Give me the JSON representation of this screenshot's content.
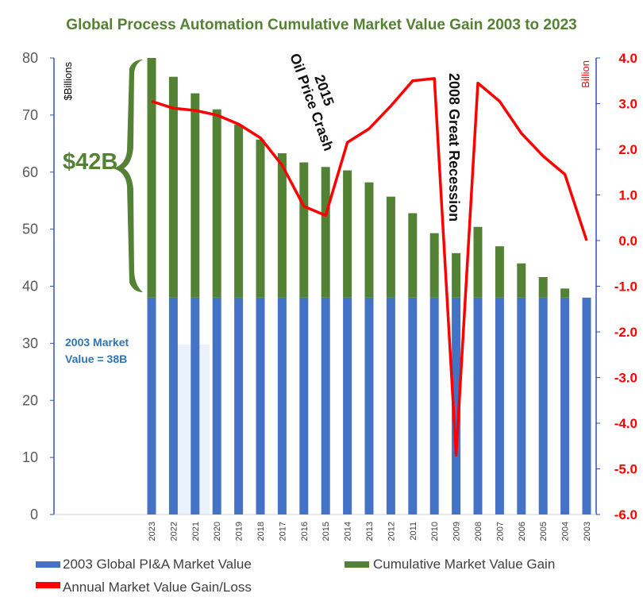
{
  "chart_data": {
    "type": "bar",
    "title": "Global Process Automation Cumulative Market Value Gain 2003 to 2023",
    "categories": [
      "2023",
      "2022",
      "2021",
      "2020",
      "2019",
      "2018",
      "2017",
      "2016",
      "2015",
      "2014",
      "2013",
      "2012",
      "2011",
      "2010",
      "2009",
      "2008",
      "2007",
      "2006",
      "2005",
      "2004",
      "2003"
    ],
    "series": [
      {
        "name": "2003 Global PI&A Market Value",
        "type": "bar",
        "stack": "market",
        "axis": "left",
        "color": "#4472c4",
        "values": [
          38,
          38,
          38,
          38,
          38,
          38,
          38,
          38,
          38,
          38,
          38,
          38,
          38,
          38,
          38,
          38,
          38,
          38,
          38,
          38,
          38
        ]
      },
      {
        "name": "Cumulative Market Value Gain",
        "type": "bar",
        "stack": "market",
        "axis": "left",
        "color": "#548235",
        "values": [
          42,
          38.7,
          35.8,
          33,
          30.3,
          27.7,
          25.3,
          23.7,
          22.9,
          22.3,
          20.2,
          17.7,
          14.8,
          11.3,
          7.8,
          12.4,
          9,
          6,
          3.6,
          1.6,
          0
        ]
      },
      {
        "name": "Annual Market Value Gain/Loss",
        "type": "line",
        "axis": "right",
        "color": "#ff0000",
        "values": [
          3.05,
          2.9,
          2.85,
          2.75,
          2.55,
          2.25,
          1.65,
          0.75,
          0.55,
          2.15,
          2.45,
          2.95,
          3.5,
          3.55,
          -4.7,
          3.45,
          3.05,
          2.35,
          1.85,
          1.45,
          0
        ]
      }
    ],
    "left_axis": {
      "label": "$Billions",
      "min": 0,
      "max": 80,
      "ticks": [
        "0",
        "10",
        "20",
        "30",
        "40",
        "50",
        "60",
        "70",
        "80"
      ]
    },
    "right_axis": {
      "label": "Billion",
      "min": -6,
      "max": 4,
      "ticks": [
        "-6.0",
        "-5.0",
        "-4.0",
        "-3.0",
        "-2.0",
        "-1.0",
        "0.0",
        "1.0",
        "2.0",
        "3.0",
        "4.0"
      ]
    },
    "annotations": {
      "gain_label": "$42B",
      "base_label_line1": "2003 Market",
      "base_label_line2": "Value = 38B",
      "oil_line1": "2015",
      "oil_line2": "Oil Price Crash",
      "recession": "2008 Great Recession"
    },
    "legend_position": "bottom",
    "grid": false
  },
  "colors": {
    "title": "#548235",
    "base": "#4472c4",
    "gain": "#548235",
    "line": "#ff0000",
    "axis_right": "#2e54b8"
  }
}
